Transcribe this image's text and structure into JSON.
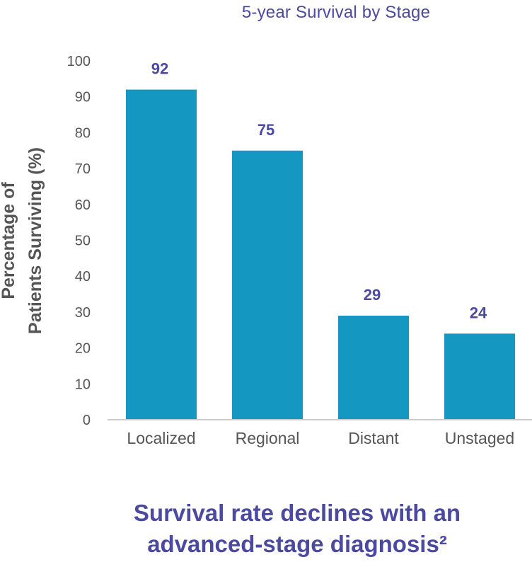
{
  "chart_data": {
    "type": "bar",
    "title": "5-year Survival by Stage",
    "categories": [
      "Localized",
      "Regional",
      "Distant",
      "Unstaged"
    ],
    "values": [
      92,
      75,
      29,
      24
    ],
    "data_labels": [
      "92",
      "75",
      "29",
      "24"
    ],
    "ylabel_lines": [
      "Percentage of",
      "Patients Surviving (%)"
    ],
    "ylim": [
      0,
      100
    ],
    "yticks": [
      0,
      10,
      20,
      30,
      40,
      50,
      60,
      70,
      80,
      90,
      100
    ],
    "grid": false,
    "bar_color": "#1497c1"
  },
  "caption": {
    "line1": "Survival rate declines with an",
    "line2": "advanced-stage diagnosis²"
  },
  "colors": {
    "accent": "#4b4aa0",
    "axis": "#cccccc",
    "text": "#555555"
  }
}
